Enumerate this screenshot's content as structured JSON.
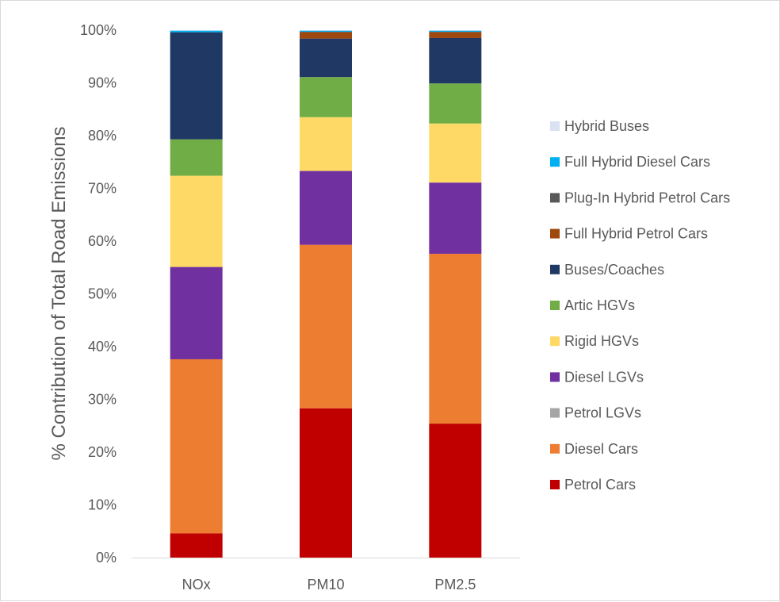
{
  "chart_data": {
    "type": "bar",
    "stacked": true,
    "percent": true,
    "title": "",
    "xlabel": "",
    "ylabel": "% Contribution of Total Road Emissions",
    "ylim": [
      0,
      100
    ],
    "yticks": [
      "0%",
      "10%",
      "20%",
      "30%",
      "40%",
      "50%",
      "60%",
      "70%",
      "80%",
      "90%",
      "100%"
    ],
    "grid": false,
    "legend_position": "right",
    "categories": [
      "NOx",
      "PM10",
      "PM2.5"
    ],
    "series": [
      {
        "name": "Petrol Cars",
        "color": "#C00000",
        "values": [
          4.6,
          28.3,
          25.4
        ]
      },
      {
        "name": "Diesel Cars",
        "color": "#ED7D31",
        "values": [
          33.0,
          31.0,
          32.2
        ]
      },
      {
        "name": "Petrol LGVs",
        "color": "#A5A5A5",
        "values": [
          0.0,
          0.0,
          0.0
        ]
      },
      {
        "name": "Diesel LGVs",
        "color": "#7030A0",
        "values": [
          17.5,
          14.0,
          13.5
        ]
      },
      {
        "name": "Rigid HGVs",
        "color": "#FFD966",
        "values": [
          17.3,
          10.2,
          11.2
        ]
      },
      {
        "name": "Artic HGVs",
        "color": "#70AD47",
        "values": [
          6.9,
          7.6,
          7.6
        ]
      },
      {
        "name": "Buses/Coaches",
        "color": "#203864",
        "values": [
          20.3,
          7.3,
          8.6
        ]
      },
      {
        "name": "Full Hybrid Petrol Cars",
        "color": "#9E480E",
        "values": [
          0.0,
          1.2,
          1.1
        ]
      },
      {
        "name": "Plug-In Hybrid Petrol Cars",
        "color": "#595959",
        "values": [
          0.0,
          0.1,
          0.1
        ]
      },
      {
        "name": "Full Hybrid Diesel Cars",
        "color": "#00B0F0",
        "values": [
          0.3,
          0.2,
          0.2
        ]
      },
      {
        "name": "Hybrid Buses",
        "color": "#D9E1F2",
        "values": [
          0.1,
          0.1,
          0.1
        ]
      }
    ]
  }
}
